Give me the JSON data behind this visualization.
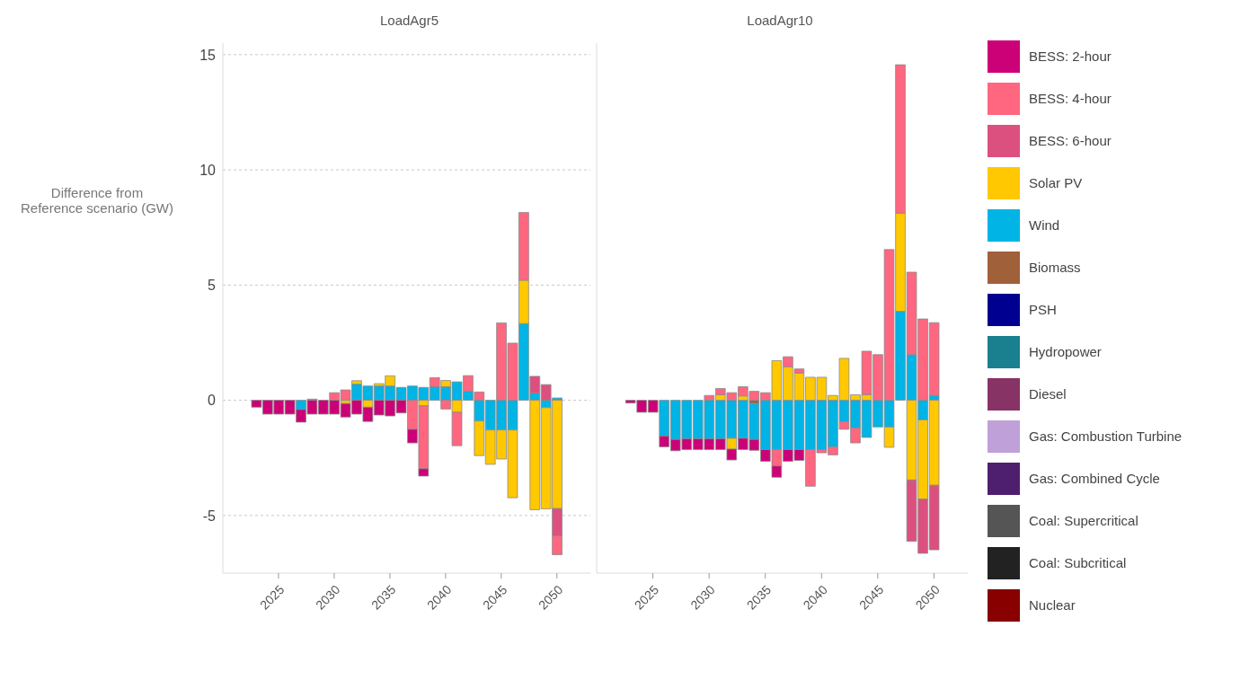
{
  "chart_data": [
    {
      "type": "bar",
      "title": "LoadAgr5",
      "ylabel": "Difference from\nReference scenario (GW)",
      "stacked": true,
      "grid": "y",
      "x": [
        2023,
        2024,
        2025,
        2026,
        2027,
        2028,
        2029,
        2030,
        2031,
        2032,
        2033,
        2034,
        2035,
        2036,
        2037,
        2038,
        2039,
        2040,
        2041,
        2042,
        2043,
        2044,
        2045,
        2046,
        2047,
        2048,
        2049,
        2050
      ],
      "xlim": [
        2020,
        2053
      ],
      "xticks": [
        2025,
        2030,
        2035,
        2040,
        2045,
        2050
      ],
      "ylim": [
        -7.5,
        15.5
      ],
      "yticks": [
        -5,
        0,
        5,
        10,
        15
      ],
      "series": [
        {
          "color": "#00b4e6",
          "values": [
            null,
            null,
            null,
            null,
            -0.4,
            0.05,
            null,
            null,
            null,
            0.7,
            0.62,
            0.62,
            0.62,
            0.56,
            0.62,
            0.56,
            0.59,
            0.59,
            0.8,
            0.39,
            -0.9,
            -1.29,
            -1.29,
            -1.29,
            3.33,
            0.31,
            -0.32,
            0.1
          ]
        },
        {
          "color": "#ffc800",
          "values": [
            null,
            null,
            null,
            null,
            null,
            null,
            null,
            null,
            -0.14,
            0.15,
            -0.3,
            0.1,
            0.44,
            null,
            null,
            -0.24,
            null,
            0.27,
            -0.52,
            null,
            -1.5,
            -1.49,
            -1.26,
            -2.94,
            1.88,
            -4.75,
            -4.39,
            -4.7
          ]
        },
        {
          "color": "#dc5080",
          "values": [
            null,
            null,
            null,
            null,
            null,
            null,
            null,
            null,
            null,
            null,
            null,
            null,
            null,
            null,
            null,
            null,
            null,
            null,
            null,
            null,
            null,
            null,
            null,
            null,
            null,
            0.73,
            0.68,
            -1.18
          ]
        },
        {
          "color": "#ff6680",
          "values": [
            null,
            null,
            null,
            null,
            null,
            null,
            null,
            0.33,
            0.45,
            null,
            null,
            null,
            null,
            null,
            -1.26,
            -2.73,
            0.39,
            -0.38,
            -1.45,
            0.68,
            0.36,
            null,
            3.36,
            2.48,
            2.94,
            null,
            null,
            -0.82
          ]
        },
        {
          "color": "#cc0077",
          "values": [
            -0.3,
            -0.6,
            -0.6,
            -0.6,
            -0.55,
            -0.6,
            -0.6,
            -0.6,
            -0.59,
            -0.6,
            -0.62,
            -0.64,
            -0.68,
            -0.55,
            -0.59,
            -0.32,
            null,
            null,
            null,
            null,
            null,
            null,
            null,
            null,
            null,
            null,
            null,
            null
          ]
        }
      ]
    },
    {
      "type": "bar",
      "title": "LoadAgr10",
      "stacked": true,
      "grid": "y",
      "legend": "right",
      "tick_labels": "x",
      "x": [
        2023,
        2024,
        2025,
        2026,
        2027,
        2028,
        2029,
        2030,
        2031,
        2032,
        2033,
        2034,
        2035,
        2036,
        2037,
        2038,
        2039,
        2040,
        2041,
        2042,
        2043,
        2044,
        2045,
        2046,
        2047,
        2048,
        2049,
        2050
      ],
      "xlim": [
        2020,
        2053
      ],
      "xticks": [
        2025,
        2030,
        2035,
        2040,
        2045,
        2050
      ],
      "ylim": [
        -7.5,
        15.5
      ],
      "yticks": [
        -5,
        0,
        5,
        10,
        15
      ],
      "series": [
        {
          "name": "Nuclear",
          "color": "#880000",
          "values": [
            null,
            null,
            null,
            null,
            null,
            null,
            null,
            null,
            null,
            null,
            null,
            null,
            null,
            null,
            null,
            null,
            null,
            null,
            null,
            null,
            null,
            null,
            null,
            null,
            null,
            null,
            null,
            null
          ]
        },
        {
          "name": "Coal: Subcritical",
          "color": "#222222",
          "values": [
            null,
            null,
            null,
            null,
            null,
            null,
            null,
            null,
            null,
            null,
            null,
            null,
            null,
            null,
            null,
            null,
            null,
            null,
            null,
            null,
            null,
            null,
            null,
            null,
            null,
            null,
            null,
            null
          ]
        },
        {
          "name": "Coal: Supercritical",
          "color": "#555555",
          "values": [
            null,
            null,
            null,
            null,
            null,
            null,
            null,
            null,
            null,
            null,
            null,
            null,
            null,
            null,
            null,
            null,
            null,
            null,
            null,
            null,
            null,
            null,
            null,
            null,
            null,
            null,
            null,
            null
          ]
        },
        {
          "name": "Gas: Combined Cycle",
          "color": "#4f1f6f",
          "values": [
            null,
            null,
            null,
            null,
            null,
            null,
            null,
            null,
            null,
            null,
            null,
            null,
            null,
            null,
            null,
            null,
            null,
            null,
            null,
            null,
            null,
            null,
            null,
            null,
            null,
            null,
            null,
            null
          ]
        },
        {
          "name": "Gas: Combustion Turbine",
          "color": "#c0a0d8",
          "values": [
            null,
            null,
            null,
            null,
            null,
            null,
            null,
            null,
            null,
            null,
            null,
            null,
            null,
            null,
            null,
            null,
            null,
            null,
            null,
            null,
            null,
            null,
            null,
            null,
            null,
            null,
            null,
            null
          ]
        },
        {
          "name": "Diesel",
          "color": "#883366",
          "values": [
            null,
            null,
            null,
            null,
            null,
            null,
            null,
            null,
            null,
            null,
            null,
            null,
            null,
            null,
            null,
            null,
            null,
            null,
            null,
            null,
            null,
            null,
            null,
            null,
            null,
            null,
            null,
            null
          ]
        },
        {
          "name": "Hydropower",
          "color": "#1a8090",
          "values": [
            null,
            null,
            null,
            null,
            null,
            null,
            null,
            null,
            null,
            null,
            null,
            null,
            null,
            null,
            null,
            null,
            null,
            null,
            null,
            null,
            null,
            null,
            null,
            null,
            null,
            null,
            null,
            null
          ]
        },
        {
          "name": "PSH",
          "color": "#000090",
          "values": [
            null,
            null,
            null,
            null,
            null,
            null,
            null,
            null,
            null,
            null,
            null,
            null,
            null,
            null,
            null,
            null,
            null,
            null,
            null,
            null,
            null,
            null,
            null,
            null,
            null,
            null,
            null,
            null
          ]
        },
        {
          "name": "Biomass",
          "color": "#a0603a",
          "values": [
            null,
            null,
            null,
            null,
            null,
            null,
            null,
            null,
            null,
            null,
            null,
            -0.14,
            null,
            null,
            null,
            null,
            null,
            null,
            null,
            null,
            null,
            null,
            null,
            null,
            null,
            null,
            null,
            null
          ]
        },
        {
          "name": "Wind",
          "color": "#00b4e6",
          "values": [
            null,
            null,
            null,
            -1.55,
            -1.7,
            -1.67,
            -1.67,
            -1.67,
            -1.67,
            -1.65,
            -1.65,
            -1.56,
            -2.14,
            -2.14,
            -2.14,
            -2.14,
            -2.14,
            -2.14,
            -2.02,
            -0.93,
            -1.2,
            -1.61,
            -1.16,
            -1.16,
            3.86,
            1.98,
            -0.85,
            0.21
          ]
        },
        {
          "name": "Solar PV",
          "color": "#ffc800",
          "values": [
            null,
            null,
            null,
            null,
            null,
            null,
            null,
            null,
            0.24,
            -0.47,
            0.19,
            null,
            null,
            1.72,
            1.45,
            1.18,
            1.0,
            1.0,
            0.21,
            1.82,
            0.24,
            0.24,
            null,
            -0.88,
            4.26,
            -3.46,
            -3.44,
            -3.69
          ]
        },
        {
          "name": "BESS: 6-hour",
          "color": "#dc5080",
          "values": [
            null,
            null,
            null,
            null,
            null,
            null,
            null,
            null,
            null,
            null,
            null,
            null,
            null,
            null,
            null,
            null,
            null,
            null,
            null,
            null,
            null,
            null,
            null,
            null,
            null,
            -2.66,
            -2.35,
            -2.8
          ]
        },
        {
          "name": "BESS: 4-hour",
          "color": "#ff6680",
          "values": [
            null,
            null,
            null,
            null,
            null,
            null,
            null,
            0.21,
            0.27,
            0.33,
            0.4,
            0.39,
            0.33,
            -0.71,
            0.44,
            0.18,
            -1.59,
            -0.14,
            -0.35,
            -0.33,
            -0.65,
            1.89,
            1.98,
            6.54,
            6.44,
            3.58,
            3.53,
            3.16
          ]
        },
        {
          "name": "BESS: 2-hour",
          "color": "#cc0077",
          "values": [
            -0.12,
            -0.52,
            -0.52,
            -0.47,
            -0.49,
            -0.47,
            -0.47,
            -0.47,
            -0.47,
            -0.47,
            -0.49,
            -0.47,
            -0.51,
            -0.49,
            -0.51,
            -0.47,
            null,
            null,
            null,
            null,
            null,
            null,
            null,
            null,
            null,
            null,
            null,
            null
          ]
        }
      ]
    }
  ]
}
